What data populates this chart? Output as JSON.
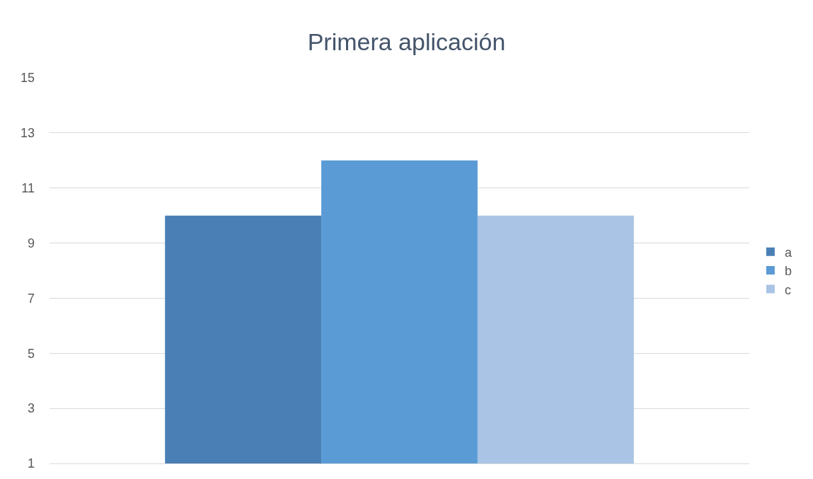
{
  "chart_data": {
    "type": "bar",
    "title": "Primera aplicación",
    "categories": [
      null
    ],
    "series": [
      {
        "name": "a",
        "color": "#4a7fb5",
        "values": [
          10
        ]
      },
      {
        "name": "b",
        "color": "#5b9bd5",
        "values": [
          12
        ]
      },
      {
        "name": "c",
        "color": "#a9c4e4",
        "values": [
          10
        ]
      }
    ],
    "ylim": [
      1,
      15
    ],
    "yticks": [
      1,
      3,
      5,
      7,
      9,
      11,
      13,
      15
    ],
    "grid": "y",
    "legend": "right"
  }
}
